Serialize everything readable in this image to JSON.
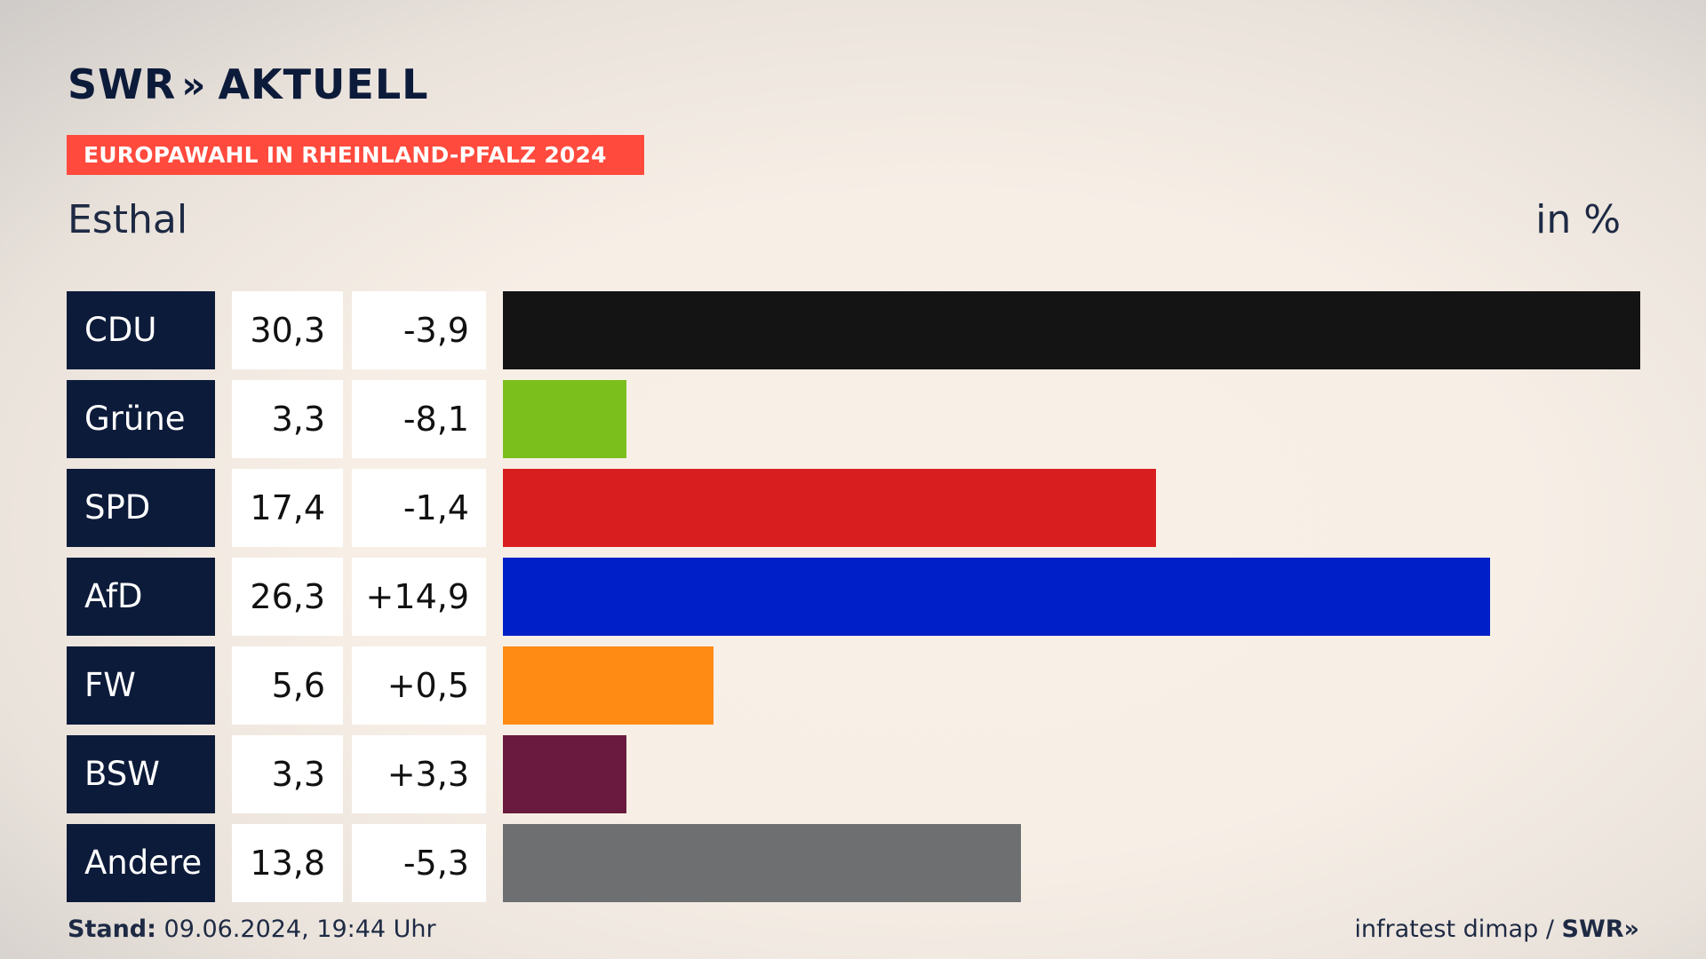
{
  "logo": {
    "brand": "SWR",
    "chevrons": "»",
    "product": "AKTUELL"
  },
  "banner": "EUROPAWAHL IN RHEINLAND-PFALZ 2024",
  "location": "Esthal",
  "unit": "in %",
  "footer": {
    "stand_label": "Stand:",
    "stand_value": "09.06.2024, 19:44 Uhr",
    "source": "infratest dimap /",
    "source_brand": "SWR»"
  },
  "chart_data": {
    "type": "bar",
    "orientation": "horizontal",
    "title": "EUROPAWAHL IN RHEINLAND-PFALZ 2024",
    "subtitle": "Esthal",
    "unit": "in %",
    "categories": [
      "CDU",
      "Grüne",
      "SPD",
      "AfD",
      "FW",
      "BSW",
      "Andere"
    ],
    "values": [
      30.3,
      3.3,
      17.4,
      26.3,
      5.6,
      3.3,
      13.8
    ],
    "values_label": [
      "30,3",
      "3,3",
      "17,4",
      "26,3",
      "5,6",
      "3,3",
      "13,8"
    ],
    "diff_label": [
      "-3,9",
      "-8,1",
      "-1,4",
      "+14,9",
      "+0,5",
      "+3,3",
      "-5,3"
    ],
    "diff": [
      -3.9,
      -8.1,
      -1.4,
      14.9,
      0.5,
      3.3,
      -5.3
    ],
    "colors": [
      "#141414",
      "#7bbf1d",
      "#d81e1e",
      "#001fc8",
      "#ff8a14",
      "#6a1a3e",
      "#6e6f71"
    ],
    "xlim": [
      0,
      30.3
    ],
    "grid": false
  }
}
